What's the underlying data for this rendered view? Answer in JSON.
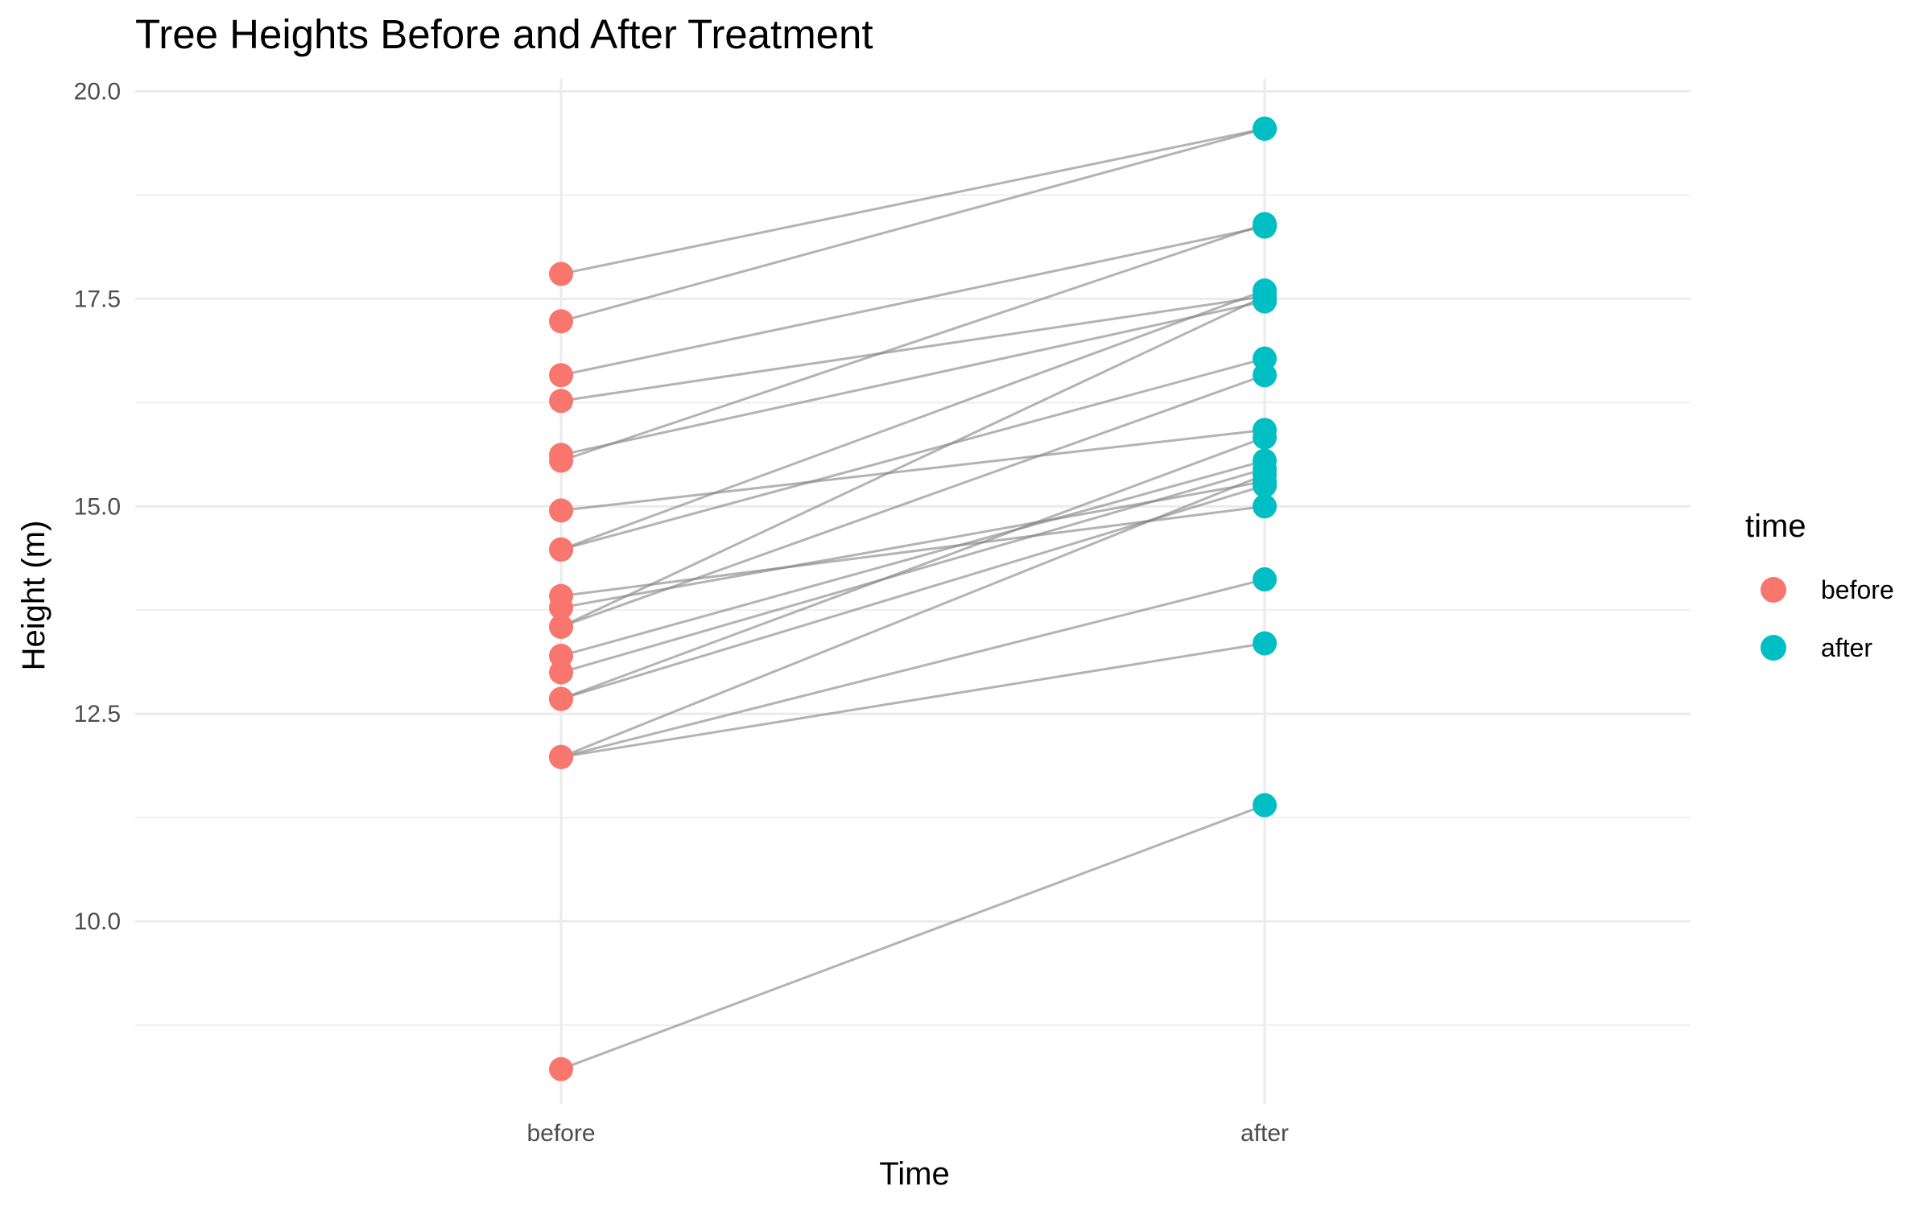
{
  "chart_data": {
    "type": "scatter",
    "title": "Tree Heights Before and After Treatment",
    "xlabel": "Time",
    "ylabel": "Height (m)",
    "categories": [
      "before",
      "after"
    ],
    "ylim": [
      7.8,
      20.15
    ],
    "yticks": [
      "10.0",
      "12.5",
      "15.0",
      "17.5",
      "20.0"
    ],
    "grid": true,
    "legend": {
      "title": "time",
      "position": "right",
      "entries": [
        {
          "label": "before",
          "color": "#F8766D"
        },
        {
          "label": "after",
          "color": "#00BFC4"
        }
      ]
    },
    "series": [
      {
        "name": "before",
        "color": "#F8766D"
      },
      {
        "name": "after",
        "color": "#00BFC4"
      }
    ],
    "pairs": [
      [
        17.8,
        19.55
      ],
      [
        17.23,
        19.55
      ],
      [
        16.58,
        18.37
      ],
      [
        16.27,
        17.53
      ],
      [
        15.62,
        17.47
      ],
      [
        15.55,
        18.4
      ],
      [
        14.95,
        15.92
      ],
      [
        14.48,
        17.6
      ],
      [
        14.48,
        16.78
      ],
      [
        13.92,
        15.0
      ],
      [
        13.78,
        15.3
      ],
      [
        13.55,
        17.53
      ],
      [
        13.55,
        16.58
      ],
      [
        13.2,
        15.55
      ],
      [
        13.0,
        15.45
      ],
      [
        12.68,
        15.83
      ],
      [
        12.68,
        15.25
      ],
      [
        11.98,
        15.38
      ],
      [
        11.98,
        14.12
      ],
      [
        11.98,
        13.35
      ],
      [
        8.22,
        11.4
      ]
    ],
    "line_color": "#808080"
  }
}
